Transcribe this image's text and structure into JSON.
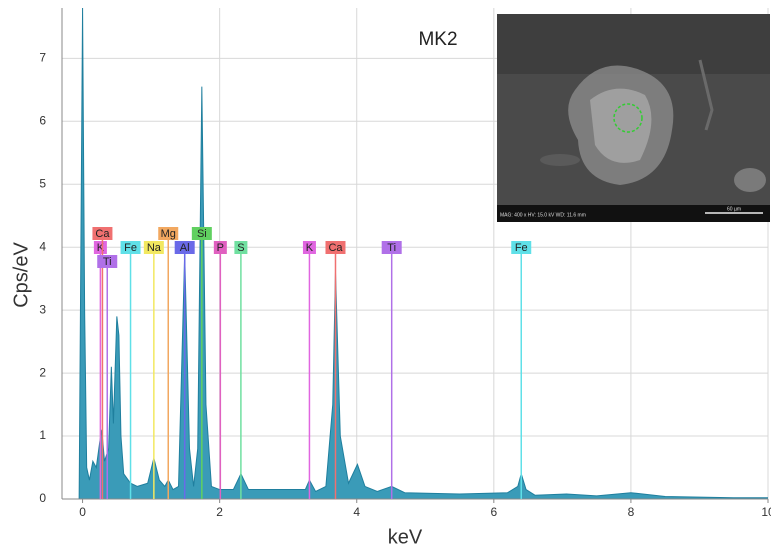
{
  "chart_data": {
    "type": "area",
    "y_label": "Cps/eV",
    "x_label": "keV",
    "annotation": "MK2",
    "color": "#3a9bb8",
    "line_color": "#1f7f9e",
    "grid": true,
    "xlim": [
      -0.3,
      10
    ],
    "ylim": [
      0,
      7.8
    ],
    "xticks": [
      0,
      2,
      4,
      6,
      8,
      10
    ],
    "yticks": [
      0,
      1,
      2,
      3,
      4,
      5,
      6,
      7
    ],
    "x": [
      -0.1,
      -0.05,
      0,
      0.03,
      0.06,
      0.1,
      0.15,
      0.2,
      0.25,
      0.28,
      0.32,
      0.38,
      0.42,
      0.45,
      0.5,
      0.53,
      0.56,
      0.6,
      0.7,
      0.8,
      0.95,
      1.04,
      1.12,
      1.2,
      1.25,
      1.32,
      1.4,
      1.49,
      1.56,
      1.62,
      1.68,
      1.74,
      1.8,
      1.88,
      2.0,
      2.2,
      2.31,
      2.42,
      2.7,
      3.0,
      3.25,
      3.31,
      3.4,
      3.55,
      3.65,
      3.69,
      3.76,
      3.88,
      4.01,
      4.12,
      4.3,
      4.51,
      4.7,
      5.5,
      6.2,
      6.35,
      6.4,
      6.47,
      6.6,
      7.06,
      7.5,
      8.0,
      8.5,
      9.5,
      10
    ],
    "values": [
      0,
      0,
      7.8,
      3,
      0.5,
      0.3,
      0.6,
      0.5,
      0.9,
      1.1,
      0.6,
      0.8,
      2.1,
      1.2,
      2.9,
      2.6,
      1.0,
      0.4,
      0.25,
      0.2,
      0.25,
      0.65,
      0.3,
      0.2,
      0.3,
      0.15,
      0.2,
      3.9,
      0.8,
      0.2,
      0.8,
      6.55,
      1.5,
      0.2,
      0.15,
      0.15,
      0.4,
      0.15,
      0.15,
      0.15,
      0.15,
      0.3,
      0.12,
      0.2,
      1.5,
      3.6,
      1.0,
      0.25,
      0.55,
      0.2,
      0.12,
      0.2,
      0.1,
      0.08,
      0.1,
      0.2,
      0.4,
      0.15,
      0.06,
      0.08,
      0.05,
      0.1,
      0.04,
      0.02,
      0.02
    ],
    "markers": [
      {
        "label": "K",
        "energy": 0.26,
        "color": "#e066e0"
      },
      {
        "label": "Ca",
        "energy": 0.29,
        "color": "#f07070"
      },
      {
        "label": "Ti",
        "energy": 0.36,
        "color": "#b070e8"
      },
      {
        "label": "Fe",
        "energy": 0.7,
        "color": "#5fe0e8"
      },
      {
        "label": "Na",
        "energy": 1.04,
        "color": "#f2e860"
      },
      {
        "label": "Mg",
        "energy": 1.25,
        "color": "#f2a860"
      },
      {
        "label": "Al",
        "energy": 1.49,
        "color": "#6a6ae8"
      },
      {
        "label": "Si",
        "energy": 1.74,
        "color": "#60d060"
      },
      {
        "label": "P",
        "energy": 2.01,
        "color": "#e060c0"
      },
      {
        "label": "S",
        "energy": 2.31,
        "color": "#70e0a0"
      },
      {
        "label": "K",
        "energy": 3.31,
        "color": "#e066e0"
      },
      {
        "label": "Ca",
        "energy": 3.69,
        "color": "#f07070"
      },
      {
        "label": "Ti",
        "energy": 4.51,
        "color": "#b070e8"
      },
      {
        "label": "Fe",
        "energy": 6.4,
        "color": "#5fe0e8"
      }
    ],
    "inset": {
      "info": "MAG: 400 x   HV: 15.0 kV   WD: 11.6 mm",
      "scale_bar": "60 µm"
    }
  }
}
